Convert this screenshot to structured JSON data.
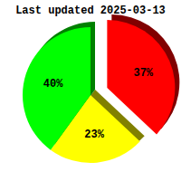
{
  "chart_data": {
    "type": "pie",
    "title": "Last updated 2025-03-13",
    "values": [
      37,
      23,
      40
    ],
    "value_labels": [
      "37%",
      "23%",
      "40%"
    ],
    "colors": [
      "#ff0000",
      "#ffff00",
      "#00ff00"
    ],
    "data_labels": true
  }
}
